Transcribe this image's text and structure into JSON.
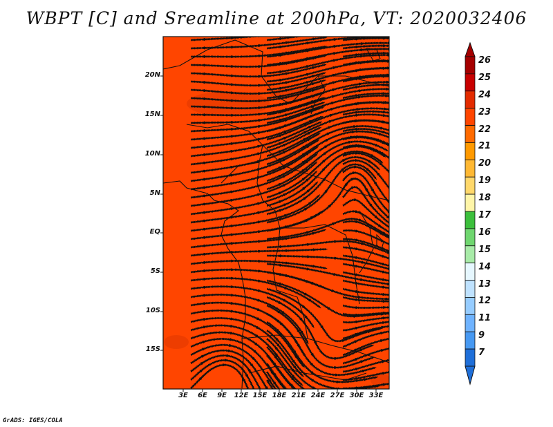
{
  "title": "WBPT [C] and Sreamline at 200hPa, VT: 2020032406",
  "credit": "GrADS: IGES/COLA",
  "map": {
    "lat_labels": [
      "20N",
      "15N",
      "10N",
      "5N",
      "EQ",
      "5S",
      "10S",
      "15S"
    ],
    "lon_labels": [
      "3E",
      "6E",
      "9E",
      "12E",
      "15E",
      "18E",
      "21E",
      "24E",
      "27E",
      "30E",
      "33E"
    ],
    "fill_color": "#ff4500",
    "field": "WBPT",
    "field_units": "C"
  },
  "colorbar": {
    "labels": [
      "26",
      "25",
      "24",
      "23",
      "22",
      "21",
      "20",
      "19",
      "18",
      "17",
      "16",
      "15",
      "14",
      "13",
      "12",
      "11",
      "9",
      "7"
    ],
    "colors": [
      "#a50000",
      "#c80000",
      "#e32b00",
      "#ff4500",
      "#ff6a00",
      "#ff9900",
      "#ffb833",
      "#ffd86b",
      "#fff5a8",
      "#3cbf3c",
      "#6fd66f",
      "#a8eba8",
      "#e6f7ff",
      "#bfe2ff",
      "#96ccff",
      "#6fb3ff",
      "#4799f2",
      "#1f6fd9"
    ]
  }
}
